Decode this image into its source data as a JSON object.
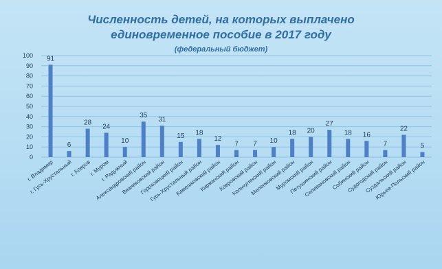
{
  "chart_data": {
    "type": "bar",
    "title_line1": "Численность детей, на которых выплачено",
    "title_line2": "единовременное пособие в 2017 году",
    "subtitle": "(федеральный бюджет)",
    "categories": [
      "г. Владимир",
      "г. Гусь-Хрустальный",
      "г. Ковров",
      "г. Муром",
      "г. Радужный",
      "Александровский район",
      "Вязниковский район",
      "Гороховецкий район",
      "Гусь-Хрустальный район",
      "Камешковский район",
      "Киржачский район",
      "Ковровский район",
      "Кольчугинский район",
      "Меленковский район",
      "Муромский район",
      "Петушинский район",
      "Селивановский район",
      "Собинский район",
      "Судогодский район",
      "Суздальский район",
      "Юрьев-Польский район"
    ],
    "values": [
      91,
      6,
      28,
      24,
      10,
      35,
      31,
      15,
      18,
      12,
      7,
      7,
      10,
      18,
      20,
      27,
      18,
      16,
      7,
      22,
      5
    ],
    "yticks": [
      0,
      10,
      20,
      30,
      40,
      50,
      60,
      70,
      80,
      90,
      100
    ],
    "ylim": [
      0,
      100
    ],
    "grid": true,
    "colors": {
      "bar": "#4d80c6",
      "title": "#2f6fa6",
      "background": "#bfe2f5"
    }
  }
}
